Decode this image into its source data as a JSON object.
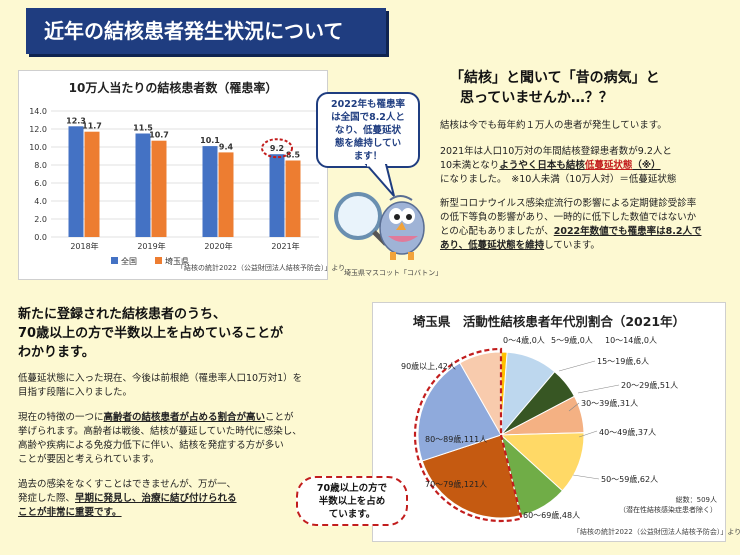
{
  "header": {
    "title": "近年の結核患者発生状況について"
  },
  "bar_panel": {
    "source": "「結核の統計2022（公益財団法人結核予防会）」より",
    "bubble": [
      "2022年も罹患率",
      "は全国で8.2人と",
      "なり、低蔓延状",
      "態を維持してい",
      "ます！"
    ]
  },
  "mascot": {
    "caption": "埼玉県マスコット「コバトン」",
    "icon": "dove-mascot-with-magnifier-icon"
  },
  "right_text": {
    "heading_line1": "「結核」と聞いて「昔の病気」と",
    "heading_line2": "思っていませんか…？？",
    "p1": "結核は今でも毎年約１万人の患者が発生しています。",
    "p2_a": "2021年は人口10万対の年間結核登録患者数が9.2人と",
    "p2_b": "10未満となり",
    "p2_c": "ようやく日本も結核",
    "p2_d": "低蔓延状態",
    "p2_e": "（※）",
    "p2_f": "になりました。　※10人未満（10万人対）＝低蔓延状態",
    "p3_a": "新型コロナウイルス感染症流行の影響による定期健診受診率",
    "p3_b": "の低下等負の影響があり、一時的に低下した数値ではないか",
    "p3_c": "との心配もありましたが、",
    "p3_d": "2022年数値でも罹患率は8.2人で",
    "p3_e": "あり、低蔓延状態を維持",
    "p3_f": "しています。"
  },
  "left_text": {
    "heading_line1": "新たに登録された結核患者のうち、",
    "heading_line2": "70歳以上の方で半数以上を占めていることが",
    "heading_line3": "わかります。",
    "p1_a": "低蔓延状態に入った現在、今後は前根絶（罹患率人口10万対1）を",
    "p1_b": "目指す段階に入りました。",
    "p2_a": "現在の特徴の一つに",
    "p2_b": "高齢者の結核患者が占める割合が高い",
    "p2_c": "ことが",
    "p2_d": "挙げられます。高齢者は戦後、結核が蔓延していた時代に感染し、",
    "p2_e": "高齢や疾病による免疫力低下に伴い、結核を発症する方が多い",
    "p2_f": "ことが要因と考えられています。",
    "p3_a": "過去の感染をなくすことはできませんが、万が一、",
    "p3_b": "発症した際、",
    "p3_c": "早期に発見し、治療に結び付けられる",
    "p3_d": "ことが非常に重要です。"
  },
  "pie_panel": {
    "source": "「結核の統計2022（公益財団法人結核予防会）」より",
    "total_line1": "総数：509人",
    "total_line2": "（潜在性結核感染症患者除く）",
    "callout": [
      "70歳以上の方で",
      "半数以上を占め",
      "ています。"
    ]
  },
  "chart_data": [
    {
      "type": "bar",
      "title": "10万人当たりの結核患者数（罹患率）",
      "categories": [
        "2018年",
        "2019年",
        "2020年",
        "2021年"
      ],
      "series": [
        {
          "name": "全国",
          "values": [
            12.3,
            11.5,
            10.1,
            9.2
          ],
          "color": "#4472c4"
        },
        {
          "name": "埼玉県",
          "values": [
            11.7,
            10.7,
            9.4,
            8.5
          ],
          "color": "#ed7d31"
        }
      ],
      "ylim": [
        0,
        14
      ],
      "yticks": [
        "0.0",
        "2.0",
        "4.0",
        "6.0",
        "8.0",
        "10.0",
        "12.0",
        "14.0"
      ],
      "grid": true,
      "legend": "bottom"
    },
    {
      "type": "pie",
      "title": "埼玉県　活動性結核患者年代別割合（2021年）",
      "labels": [
        "0～4歳,0人",
        "5～9歳,0人",
        "10～14歳,0人",
        "15～19歳,6人",
        "20～29歳,51人",
        "30～39歳,31人",
        "40～49歳,37人",
        "50～59歳,62人",
        "60～69歳,48人",
        "70～79歳,121人",
        "80～89歳,111人",
        "90歳以上,42人"
      ],
      "values": [
        0,
        0,
        0,
        6,
        51,
        31,
        37,
        62,
        48,
        121,
        111,
        42
      ],
      "colors": [
        "#5b9bd5",
        "#ed7d31",
        "#a5a5a5",
        "#ffc000",
        "#bdd7ee",
        "#375623",
        "#f4b183",
        "#ffd966",
        "#70ad47",
        "#c55a11",
        "#8faadc",
        "#f8cbad"
      ]
    }
  ]
}
